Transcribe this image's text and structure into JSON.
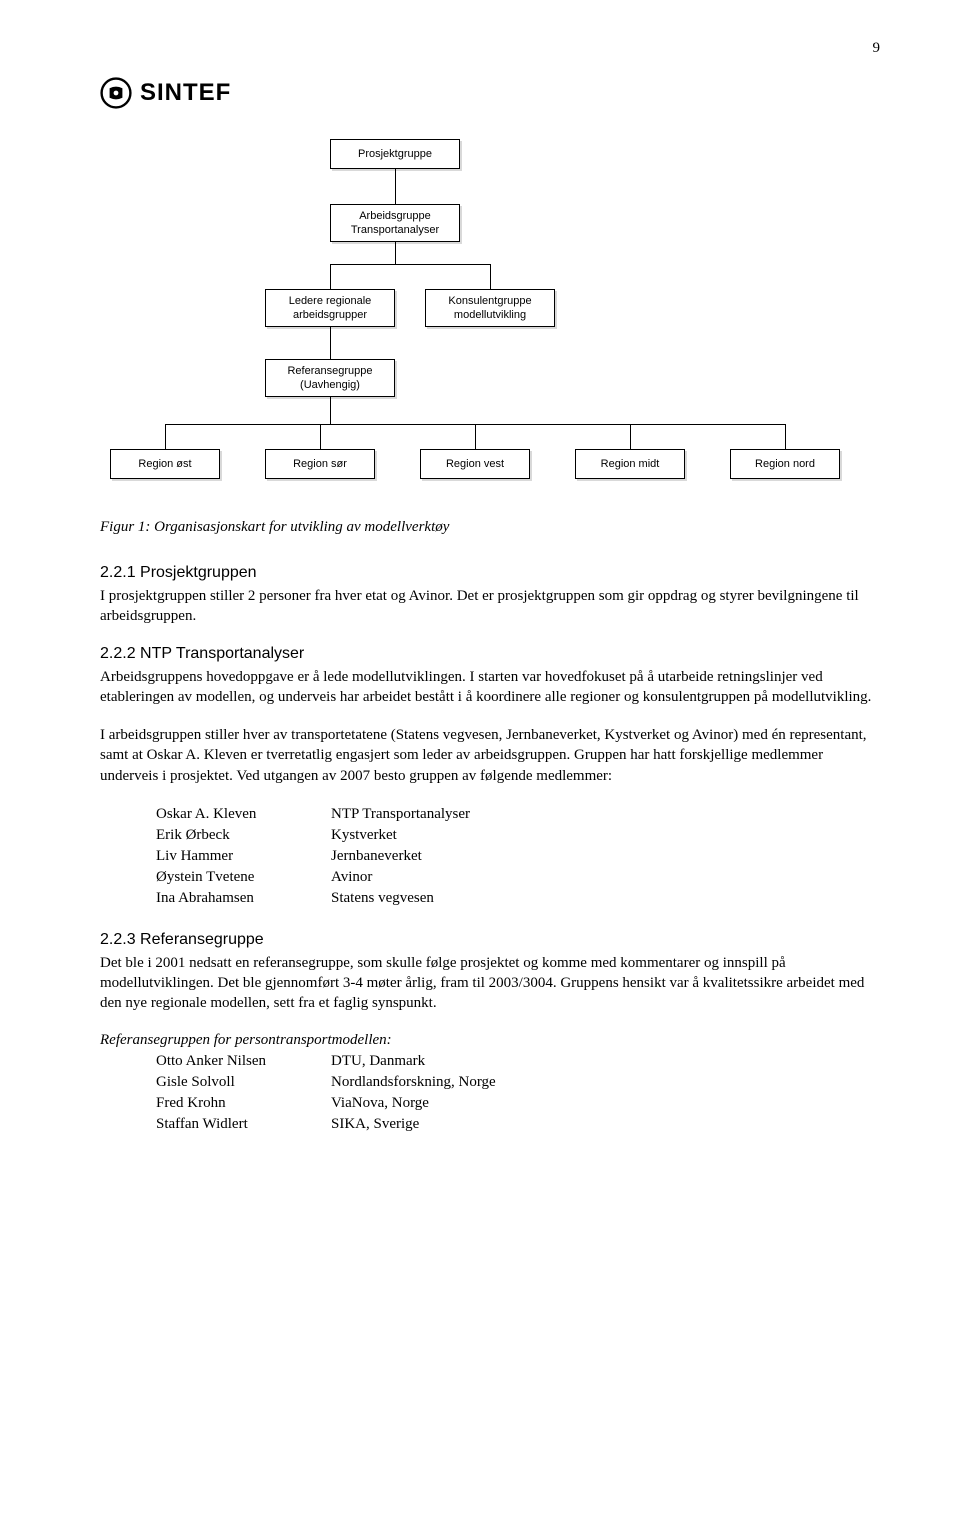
{
  "page_number": "9",
  "logo_text": "SINTEF",
  "org": {
    "box_bg": "#ffffff",
    "box_border": "#000000",
    "font_family": "Arial",
    "font_size_pt": 8,
    "nodes": {
      "top": "Prosjektgruppe",
      "lvl2": "Arbeidsgruppe\nTransportanalyser",
      "lvl3_left": "Ledere regionale\narbeidsgrupper",
      "lvl3_right": "Konsulentgruppe\nmodellutvikling",
      "lvl4": "Referansegruppe\n(Uavhengig)",
      "r1": "Region øst",
      "r2": "Region sør",
      "r3": "Region vest",
      "r4": "Region midt",
      "r5": "Region nord"
    }
  },
  "figure_caption": "Figur 1: Organisasjonskart for utvikling av modellverktøy",
  "s221": {
    "heading": "2.2.1  Prosjektgruppen",
    "para": "I prosjektgruppen stiller 2 personer fra hver etat og Avinor. Det er prosjektgruppen som gir oppdrag og styrer bevilgningene til arbeidsgruppen."
  },
  "s222": {
    "heading": "2.2.2  NTP Transportanalyser",
    "p1": "Arbeidsgruppens hovedoppgave er å lede modellutviklingen. I starten var hovedfokuset på å utarbeide retningslinjer ved etableringen av modellen, og underveis har arbeidet bestått i å koordinere alle regioner og konsulentgruppen på modellutvikling.",
    "p2": "I arbeidsgruppen stiller hver av transportetatene (Statens vegvesen, Jernbaneverket, Kystverket og Avinor) med én representant, samt at Oskar A. Kleven er tverretatlig engasjert som leder av arbeidsgruppen. Gruppen har hatt forskjellige medlemmer underveis i prosjektet. Ved utgangen av 2007 besto gruppen av følgende medlemmer:",
    "members": [
      {
        "name": "Oskar A. Kleven",
        "org": "NTP Transportanalyser"
      },
      {
        "name": "Erik Ørbeck",
        "org": "Kystverket"
      },
      {
        "name": "Liv Hammer",
        "org": "Jernbaneverket"
      },
      {
        "name": "Øystein Tvetene",
        "org": "Avinor"
      },
      {
        "name": "Ina Abrahamsen",
        "org": "Statens vegvesen"
      }
    ]
  },
  "s223": {
    "heading": "2.2.3  Referansegruppe",
    "para": "Det ble i 2001 nedsatt en referansegruppe, som skulle følge prosjektet og komme med kommentarer og innspill på modellutviklingen. Det ble gjennomført 3-4 møter årlig, fram til 2003/3004. Gruppens hensikt var å kvalitetssikre arbeidet med den nye regionale modellen, sett fra et faglig synspunkt.",
    "ref_heading": "Referansegruppen for persontransportmodellen:",
    "members": [
      {
        "name": "Otto Anker Nilsen",
        "org": "DTU, Danmark"
      },
      {
        "name": "Gisle Solvoll",
        "org": "Nordlandsforskning, Norge"
      },
      {
        "name": "Fred Krohn",
        "org": "ViaNova, Norge"
      },
      {
        "name": "Staffan Widlert",
        "org": "SIKA, Sverige"
      }
    ]
  }
}
